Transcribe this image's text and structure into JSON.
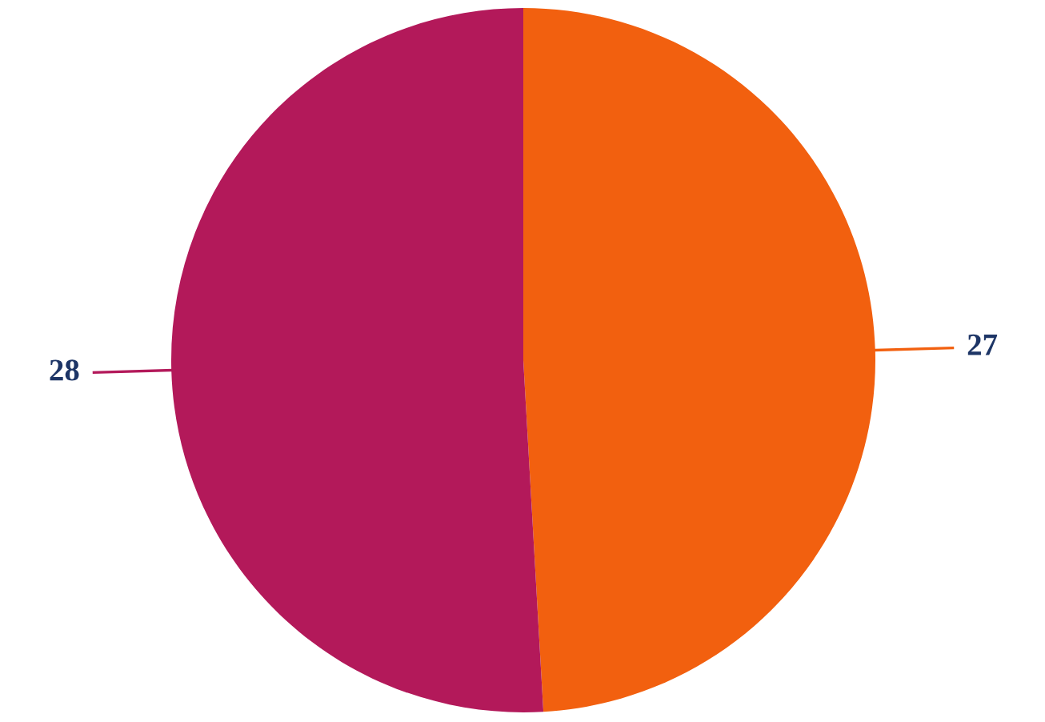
{
  "chart_data": {
    "type": "pie",
    "categories": [
      null,
      null
    ],
    "values": [
      27,
      28
    ],
    "colors": [
      "#f2600f",
      "#b3195a"
    ],
    "data_labels": true,
    "legend": false
  }
}
